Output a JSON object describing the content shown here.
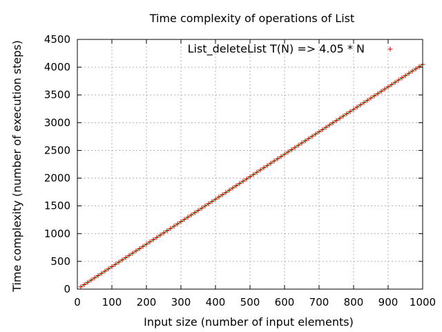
{
  "chart_data": {
    "type": "scatter",
    "title": "Time complexity of operations of List",
    "xlabel": "Input size (number of input elements)",
    "ylabel": "Time complexity (number of execution steps)",
    "xlim": [
      0,
      1000
    ],
    "ylim": [
      0,
      4500
    ],
    "xticks": [
      0,
      100,
      200,
      300,
      400,
      500,
      600,
      700,
      800,
      900,
      1000
    ],
    "yticks": [
      0,
      500,
      1000,
      1500,
      2000,
      2500,
      3000,
      3500,
      4000,
      4500
    ],
    "grid": true,
    "legend_position": "top-right",
    "series": [
      {
        "name": "List_deleteList T(N) => 4.05 * N",
        "marker": "plus",
        "color": "#cc0000",
        "points_x": [
          10,
          20,
          30,
          40,
          50,
          60,
          70,
          80,
          90,
          100,
          110,
          120,
          130,
          140,
          150,
          160,
          170,
          180,
          190,
          200,
          210,
          220,
          230,
          240,
          250,
          260,
          270,
          280,
          290,
          300,
          310,
          320,
          330,
          340,
          350,
          360,
          370,
          380,
          390,
          400,
          410,
          420,
          430,
          440,
          450,
          460,
          470,
          480,
          490,
          500,
          510,
          520,
          530,
          540,
          550,
          560,
          570,
          580,
          590,
          600,
          610,
          620,
          630,
          640,
          650,
          660,
          670,
          680,
          690,
          700,
          710,
          720,
          730,
          740,
          750,
          760,
          770,
          780,
          790,
          800,
          810,
          820,
          830,
          840,
          850,
          860,
          870,
          880,
          890,
          900,
          910,
          920,
          930,
          940,
          950,
          960,
          970,
          980,
          990,
          1000
        ],
        "points_y": [
          40.5,
          81,
          121.5,
          162,
          202.5,
          243,
          283.5,
          324,
          364.5,
          405,
          445.5,
          486,
          526.5,
          567,
          607.5,
          648,
          688.5,
          729,
          769.5,
          810,
          850.5,
          891,
          931.5,
          972,
          1012.5,
          1053,
          1093.5,
          1134,
          1174.5,
          1215,
          1255.5,
          1296,
          1336.5,
          1377,
          1417.5,
          1458,
          1498.5,
          1539,
          1579.5,
          1620,
          1660.5,
          1701,
          1741.5,
          1782,
          1822.5,
          1863,
          1903.5,
          1944,
          1984.5,
          2025,
          2065.5,
          2106,
          2146.5,
          2187,
          2227.5,
          2268,
          2308.5,
          2349,
          2389.5,
          2430,
          2470.5,
          2511,
          2551.5,
          2592,
          2632.5,
          2673,
          2713.5,
          2754,
          2794.5,
          2835,
          2875.5,
          2916,
          2956.5,
          2997,
          3037.5,
          3078,
          3118.5,
          3159,
          3199.5,
          3240,
          3280.5,
          3321,
          3361.5,
          3402,
          3442.5,
          3483,
          3523.5,
          3564,
          3604.5,
          3645,
          3685.5,
          3726,
          3766.5,
          3807,
          3847.5,
          3888,
          3928.5,
          3969,
          4009.5,
          4050
        ]
      },
      {
        "marker": "line",
        "color": "#00a000",
        "line_x": [
          10,
          1000
        ],
        "line_y": [
          40.5,
          4050
        ]
      }
    ]
  }
}
